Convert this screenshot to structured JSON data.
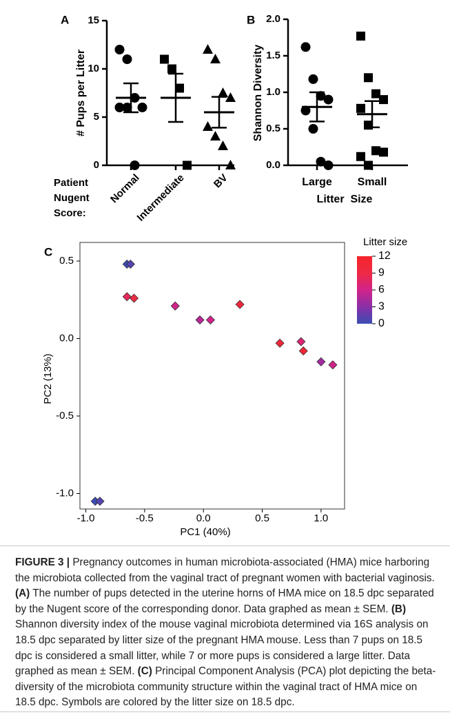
{
  "chart_data": [
    {
      "type": "dot-plot",
      "panel": "A",
      "ylabel": "# Pups per Litter",
      "xlabel_lines": [
        "Patient",
        "Nugent",
        "Score:"
      ],
      "ylim": [
        0,
        15
      ],
      "yticks": [
        0,
        5,
        10,
        15
      ],
      "color": "#000000",
      "groups": [
        {
          "name": "Normal",
          "marker": "circle",
          "values": [
            12,
            11,
            7,
            6,
            6,
            6,
            0
          ],
          "mean": 7,
          "sem": 1.5
        },
        {
          "name": "Intermediate",
          "marker": "square",
          "values": [
            11,
            10,
            8,
            0
          ],
          "mean": 7,
          "sem": 2.5
        },
        {
          "name": "BV",
          "marker": "triangle",
          "values": [
            12,
            11,
            7.5,
            7,
            4,
            3,
            2,
            0
          ],
          "mean": 5.5,
          "sem": 1.6
        }
      ]
    },
    {
      "type": "dot-plot",
      "panel": "B",
      "ylabel": "Shannon Diversity",
      "xlabel": "Litter  Size",
      "ylim": [
        0,
        2
      ],
      "yticks": [
        {
          "value": 0,
          "label": "0.0"
        },
        {
          "value": 0.5,
          "label": "0.5"
        },
        {
          "value": 1,
          "label": "1.0"
        },
        {
          "value": 1.5,
          "label": "1.5"
        },
        {
          "value": 2,
          "label": "2.0"
        }
      ],
      "color": "#000000",
      "groups": [
        {
          "name": "Large",
          "marker": "circle",
          "values": [
            1.62,
            1.18,
            0.95,
            0.9,
            0.75,
            0.5,
            0.05,
            0.0
          ],
          "mean": 0.8,
          "sem": 0.2
        },
        {
          "name": "Small",
          "marker": "square",
          "values": [
            1.77,
            1.2,
            0.98,
            0.9,
            0.78,
            0.55,
            0.2,
            0.18,
            0.12,
            0.0
          ],
          "mean": 0.7,
          "sem": 0.18
        }
      ]
    },
    {
      "type": "scatter",
      "panel": "C",
      "xlabel": "PC1 (40%)",
      "ylabel": "PC2 (13%)",
      "marker": "diamond",
      "xlim": [
        -1.05,
        1.2
      ],
      "ylim": [
        -1.1,
        0.62
      ],
      "xticks": [
        {
          "value": -1,
          "label": "-1.0"
        },
        {
          "value": -0.5,
          "label": "-0.5"
        },
        {
          "value": 0,
          "label": "0.0"
        },
        {
          "value": 0.5,
          "label": "0.5"
        },
        {
          "value": 1,
          "label": "1.0"
        }
      ],
      "yticks": [
        {
          "value": -1,
          "label": "-1.0"
        },
        {
          "value": -0.5,
          "label": "-0.5"
        },
        {
          "value": 0,
          "label": "0.0"
        },
        {
          "value": 0.5,
          "label": "0.5"
        }
      ],
      "x": [
        -0.65,
        -0.62,
        -0.65,
        -0.59,
        -0.24,
        -0.03,
        0.06,
        0.31,
        0.65,
        0.83,
        0.85,
        1.0,
        1.1,
        -0.92,
        -0.88
      ],
      "y": [
        0.48,
        0.48,
        0.27,
        0.26,
        0.21,
        0.12,
        0.12,
        0.22,
        -0.03,
        -0.02,
        -0.08,
        -0.15,
        -0.17,
        -1.05,
        -1.05
      ],
      "color_values": [
        0,
        1,
        8,
        9,
        6,
        5,
        6,
        10,
        10,
        7,
        11,
        4,
        6,
        0,
        1
      ],
      "colorbar": {
        "title": "Litter size",
        "lim": [
          0,
          12
        ],
        "ticks": [
          0,
          3,
          6,
          9,
          12
        ],
        "colors": [
          "#3a4db3",
          "#8a2fa8",
          "#d1238a",
          "#ee2a45",
          "#f5242a"
        ]
      }
    }
  ],
  "caption": [
    {
      "text": "FIGURE 3 |",
      "bold": true
    },
    {
      "text": " Pregnancy outcomes in human microbiota-associated (HMA) mice harboring the microbiota collected from the vaginal tract of pregnant women with bacterial vaginosis. ",
      "bold": false
    },
    {
      "text": "(A)",
      "bold": true
    },
    {
      "text": " The number of pups detected in the uterine horns of HMA mice on 18.5 dpc separated by the Nugent score of the corresponding donor. Data graphed as mean ± SEM. ",
      "bold": false
    },
    {
      "text": "(B)",
      "bold": true
    },
    {
      "text": " Shannon diversity index of the mouse vaginal microbiota determined via 16S analysis on 18.5 dpc separated by litter size of the pregnant HMA mouse. Less than 7 pups on 18.5 dpc is considered a small litter, while 7 or more pups is considered a large litter. Data graphed as mean ± SEM. ",
      "bold": false
    },
    {
      "text": "(C)",
      "bold": true
    },
    {
      "text": " Principal Component Analysis (PCA) plot depicting the beta-diversity of the microbiota community structure within the vaginal tract of HMA mice on 18.5 dpc. Symbols are colored by the litter size on 18.5 dpc.",
      "bold": false
    }
  ]
}
